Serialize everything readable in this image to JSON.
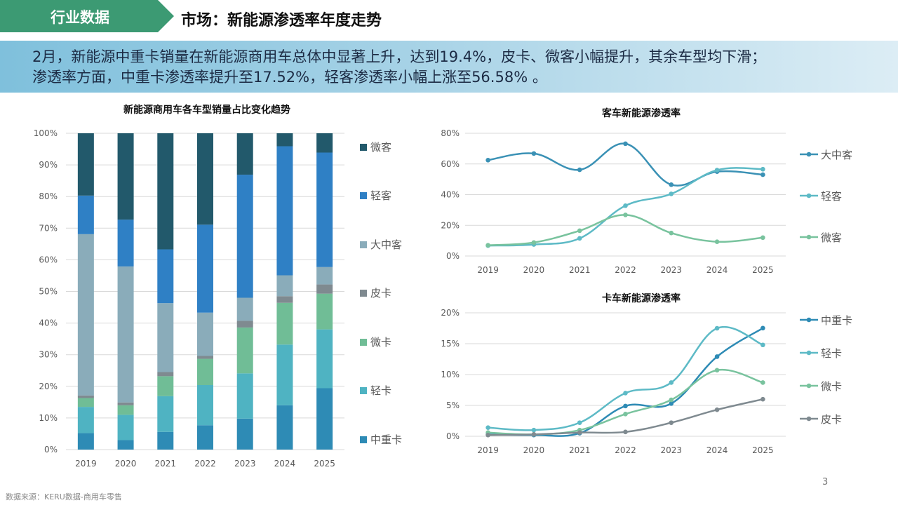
{
  "header": {
    "tag": "行业数据",
    "title": "市场：新能源渗透率年度走势"
  },
  "summary": {
    "line1": "2月，新能源中重卡销量在新能源商用车总体中显著上升，达到19.4%，皮卡、微客小幅提升，其余车型均下滑；",
    "line2": "渗透率方面，中重卡渗透率提升至17.52%，轻客渗透率小幅上涨至56.58% 。"
  },
  "footer": {
    "page": "3",
    "source": "数据来源：KERU数据-商用车零售"
  },
  "chart_data": [
    {
      "type": "bar",
      "stacked": true,
      "title": "新能源商用车各车型销量占比变化趋势",
      "categories": [
        "2019",
        "2020",
        "2021",
        "2022",
        "2023",
        "2024",
        "2025"
      ],
      "ylim": [
        0,
        100
      ],
      "yticks": [
        "0%",
        "10%",
        "20%",
        "30%",
        "40%",
        "50%",
        "60%",
        "70%",
        "80%",
        "90%",
        "100%"
      ],
      "grid": true,
      "legend": "right",
      "series": [
        {
          "name": "中重卡",
          "color": "#2e8bb5",
          "values": [
            5.2,
            3.0,
            5.6,
            7.7,
            9.8,
            14.0,
            19.4
          ]
        },
        {
          "name": "轻卡",
          "color": "#4fb3c2",
          "values": [
            8.3,
            8.0,
            11.3,
            12.7,
            14.3,
            19.2,
            18.6
          ]
        },
        {
          "name": "微卡",
          "color": "#70bd96",
          "values": [
            2.8,
            3.0,
            6.3,
            8.3,
            14.5,
            13.2,
            11.3
          ]
        },
        {
          "name": "皮卡",
          "color": "#7f8a90",
          "values": [
            0.8,
            0.9,
            1.3,
            0.9,
            2.1,
            2.1,
            2.9
          ]
        },
        {
          "name": "大中客",
          "color": "#8aacba",
          "values": [
            51.0,
            43.0,
            21.8,
            13.7,
            7.3,
            6.6,
            5.5
          ]
        },
        {
          "name": "轻客",
          "color": "#2f80c5",
          "values": [
            12.2,
            14.8,
            17.0,
            27.8,
            38.9,
            40.8,
            36.2
          ]
        },
        {
          "name": "微客",
          "color": "#22596b",
          "values": [
            19.7,
            27.3,
            36.7,
            28.9,
            13.1,
            4.1,
            6.1
          ]
        }
      ]
    },
    {
      "type": "line",
      "title": "客车新能源渗透率",
      "x": [
        "2019",
        "2020",
        "2021",
        "2022",
        "2023",
        "2024",
        "2025"
      ],
      "ylim": [
        0,
        80
      ],
      "yticks": [
        "0%",
        "20%",
        "40%",
        "60%",
        "80%"
      ],
      "grid": true,
      "legend": "right",
      "series": [
        {
          "name": "大中客",
          "color": "#3a91b5",
          "values": [
            62.5,
            66.8,
            56.2,
            73.2,
            46.5,
            55.0,
            53.0
          ]
        },
        {
          "name": "轻客",
          "color": "#5dbac6",
          "values": [
            6.8,
            7.5,
            11.5,
            32.8,
            40.5,
            56.0,
            56.58
          ]
        },
        {
          "name": "微客",
          "color": "#79c39e",
          "values": [
            7.0,
            8.8,
            16.5,
            26.8,
            15.0,
            9.3,
            12.0
          ]
        }
      ]
    },
    {
      "type": "line",
      "title": "卡车新能源渗透率",
      "x": [
        "2019",
        "2020",
        "2021",
        "2022",
        "2023",
        "2024",
        "2025"
      ],
      "ylim": [
        0,
        20
      ],
      "yticks": [
        "0%",
        "5%",
        "10%",
        "15%",
        "20%"
      ],
      "grid": true,
      "legend": "right",
      "series": [
        {
          "name": "中重卡",
          "color": "#2e8bb5",
          "values": [
            0.3,
            0.2,
            0.5,
            4.9,
            5.3,
            12.9,
            17.52
          ]
        },
        {
          "name": "轻卡",
          "color": "#5dbac6",
          "values": [
            1.4,
            1.0,
            2.2,
            7.0,
            8.7,
            17.5,
            14.8
          ]
        },
        {
          "name": "微卡",
          "color": "#79c39e",
          "values": [
            0.6,
            0.3,
            1.0,
            3.6,
            5.9,
            10.7,
            8.7
          ]
        },
        {
          "name": "皮卡",
          "color": "#7f8a90",
          "values": [
            0.2,
            0.3,
            0.6,
            0.7,
            2.2,
            4.3,
            6.0
          ]
        }
      ]
    }
  ]
}
